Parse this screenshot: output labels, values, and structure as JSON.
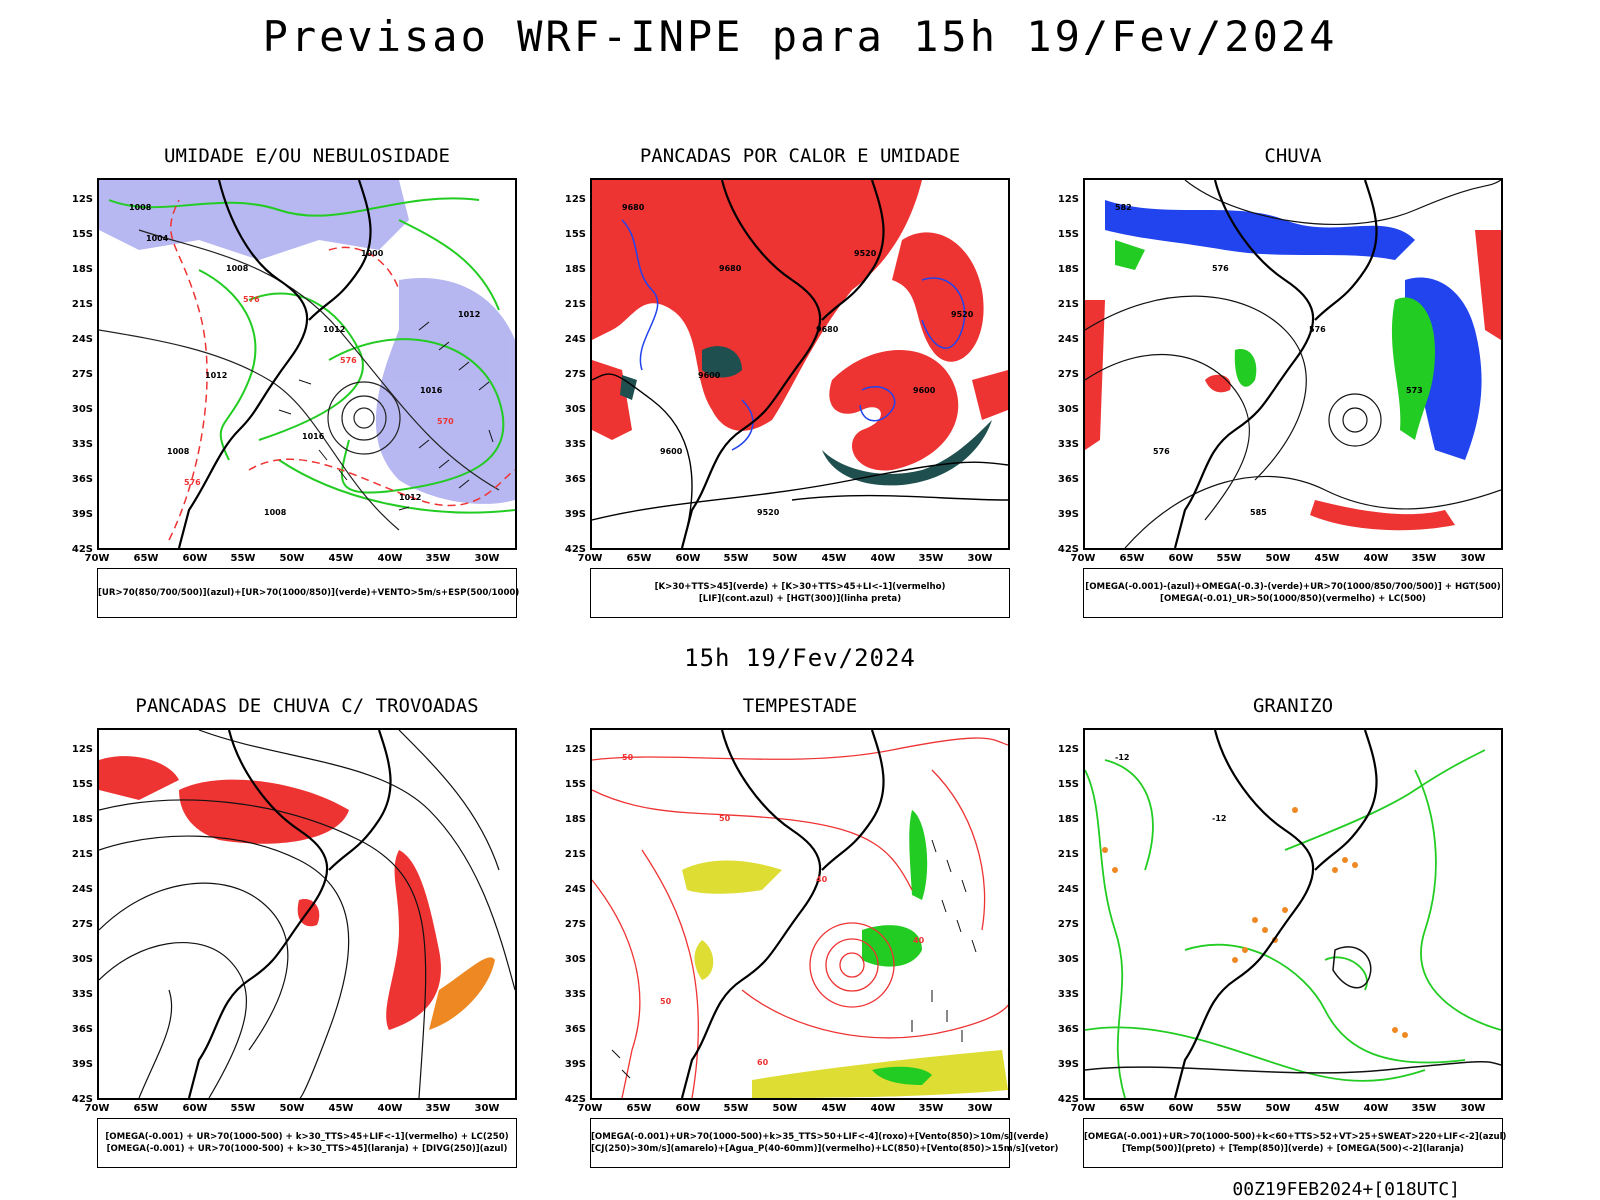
{
  "title": "Previsao WRF-INPE  para 15h 19/Fev/2024",
  "middle_title": "15h 19/Fev/2024",
  "footer": "00Z19FEB2024+[018UTC]",
  "lat_labels": [
    "12S",
    "15S",
    "18S",
    "21S",
    "24S",
    "27S",
    "30S",
    "33S",
    "36S",
    "39S",
    "42S"
  ],
  "lon_labels": [
    "70W",
    "65W",
    "60W",
    "55W",
    "50W",
    "45W",
    "40W",
    "35W",
    "30W"
  ],
  "colors": {
    "green": "#22cc22",
    "blue": "#2244ee",
    "lavender": "#aaaaee",
    "red": "#ee3333",
    "dark_teal": "#1f4f4f",
    "yellow": "#dddd33",
    "orange": "#ee8822"
  },
  "panels": [
    {
      "title": "UMIDADE E/OU NEBULOSIDADE",
      "legend": [
        "[UR>70(850/700/500)](azul)+[UR>70(1000/850)](verde)+VENTO>5m/s+ESP(500/1000)"
      ],
      "contour_labels": [
        "1008",
        "1008",
        "1012",
        "1016",
        "1008",
        "1008",
        "1000",
        "1012",
        "1012",
        "1016",
        "1012",
        "1004",
        "576",
        "576",
        "570",
        "576"
      ]
    },
    {
      "title": "PANCADAS POR CALOR E UMIDADE",
      "legend": [
        "[K>30+TTS>45](verde) + [K>30+TTS>45+LI<-1](vermelho)",
        "[LIF](cont.azul) + [HGT(300)](linha preta)"
      ],
      "contour_labels": [
        "9680",
        "9680",
        "9680",
        "9600",
        "9600",
        "9520",
        "9520",
        "9520",
        "9600"
      ]
    },
    {
      "title": "CHUVA",
      "legend": [
        "[OMEGA(-0.001)-(azul)+OMEGA(-0.3)-(verde)+UR>70(1000/850/700/500)] + HGT(500)",
        "[OMEGA(-0.01)_UR>50(1000/850)(vermelho) + LC(500)"
      ],
      "contour_labels": [
        "582",
        "576",
        "576",
        "573",
        "576",
        "585"
      ]
    },
    {
      "title": "PANCADAS DE CHUVA C/ TROVOADAS",
      "legend": [
        "[OMEGA(-0.001) + UR>70(1000-500) + k>30_TTS>45+LIF<-1](vermelho) + LC(250)",
        "[OMEGA(-0.001) + UR>70(1000-500) + k>30_TTS>45](laranja) + [DIVG(250)](azul)"
      ],
      "contour_labels": []
    },
    {
      "title": "TEMPESTADE",
      "legend": [
        "[OMEGA(-0.001)+UR>70(1000-500)+k>35_TTS>50+LIF<-4](roxo)+[Vento(850)>10m/s](verde)",
        "[CJ(250)>30m/s](amarelo)+[Agua_P(40-60mm)](vermelho)+LC(850)+[Vento(850)>15m/s](vetor)"
      ],
      "contour_labels": [
        "50",
        "50",
        "40",
        "40",
        "50",
        "60"
      ]
    },
    {
      "title": "GRANIZO",
      "legend": [
        "[OMEGA(-0.001)+UR>70(1000-500)+k<60+TTS>52+VT>25+SWEAT>220+LIF<-2](azul)",
        "[Temp(500)](preto) + [Temp(850)](verde) + [OMEGA(500)<-2](laranja)"
      ],
      "contour_labels": [
        "-12",
        "-12"
      ]
    }
  ]
}
